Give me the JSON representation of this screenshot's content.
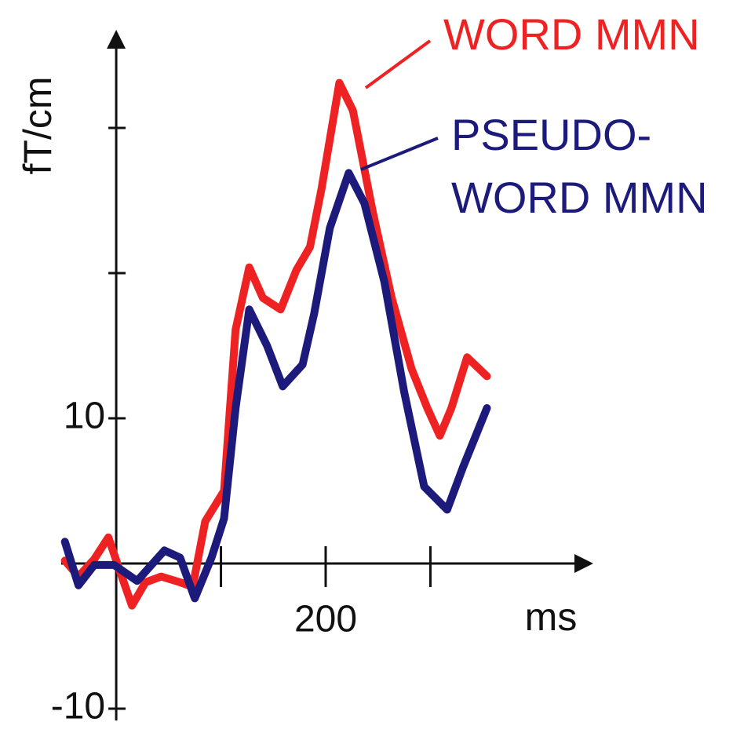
{
  "chart_data": {
    "type": "line",
    "y_label": "fT/cm",
    "x_label": "ms",
    "xlim": [
      -60,
      445
    ],
    "ylim": [
      -10,
      36
    ],
    "xticks": [
      {
        "value": 100,
        "label": null
      },
      200,
      {
        "value": 300,
        "label": null
      }
    ],
    "yticks": [
      -10,
      10,
      {
        "value": 20,
        "label": null
      },
      {
        "value": 30,
        "label": null
      }
    ],
    "series": [
      {
        "name": [
          "WORD MMN"
        ],
        "color": "#ee2222",
        "x": [
          -49,
          -36,
          -21,
          -7.5,
          1.5,
          15,
          28,
          43,
          61,
          73,
          85,
          103,
          114,
          127,
          140,
          157,
          172,
          185,
          196,
          213,
          226,
          245,
          263,
          282,
          297,
          309,
          320,
          335,
          354
        ],
        "values": [
          0.2,
          -0.9,
          0.3,
          1.8,
          -0.1,
          -2.9,
          -1.3,
          -0.9,
          -1.3,
          -1.6,
          2.9,
          5.0,
          16.1,
          20.4,
          18.3,
          17.5,
          20.2,
          21.8,
          25.8,
          33.1,
          31.2,
          24.2,
          18.3,
          13.4,
          10.7,
          8.8,
          10.7,
          14.2,
          12.9
        ]
      },
      {
        "name": [
          "PSEUDO-",
          "WORD MMN"
        ],
        "color": "#1c1a7a",
        "x": [
          -49,
          -36,
          -21,
          -2,
          20,
          46,
          61,
          75,
          91,
          103,
          114,
          127,
          144,
          159,
          178,
          189,
          204,
          222,
          237,
          256,
          275,
          294,
          316,
          331,
          354
        ],
        "values": [
          1.5,
          -1.5,
          -0.1,
          -0.1,
          -1.2,
          0.9,
          0.4,
          -2.4,
          0.4,
          3.1,
          10.7,
          17.5,
          15.0,
          12.2,
          13.7,
          17.2,
          23.1,
          26.9,
          24.8,
          19.4,
          11.8,
          5.3,
          3.7,
          6.6,
          10.7
        ]
      }
    ]
  }
}
